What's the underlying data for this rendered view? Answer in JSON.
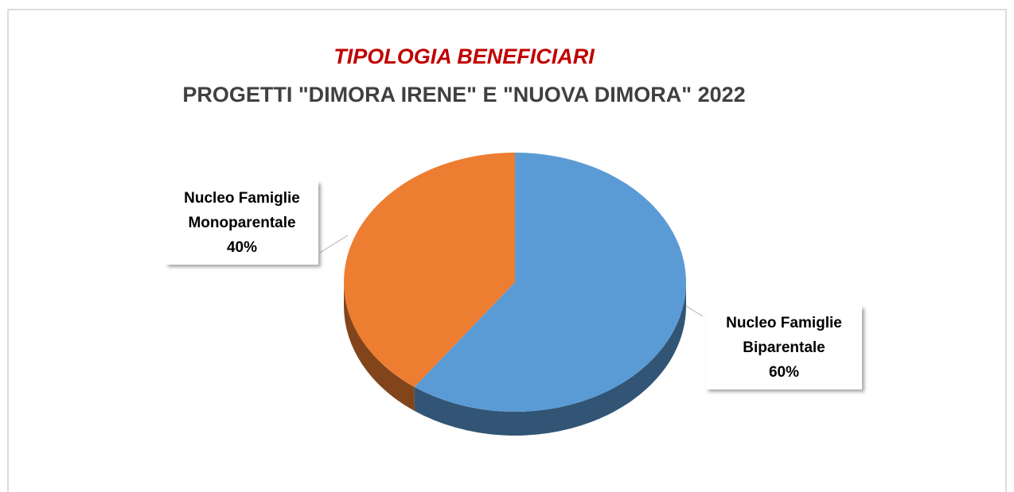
{
  "chart_data": {
    "type": "pie",
    "title": "TIPOLOGIA BENEFICIARI",
    "subtitle": "PROGETTI \"DIMORA IRENE\" E \"NUOVA DIMORA\" 2022",
    "categories": [
      "Nucleo Famiglie Biparentale",
      "Nucleo Famiglie Monoparentale"
    ],
    "values": [
      60,
      40
    ],
    "value_labels": [
      "60%",
      "40%"
    ],
    "colors": [
      "#5b9bd5",
      "#ed7d31"
    ]
  }
}
